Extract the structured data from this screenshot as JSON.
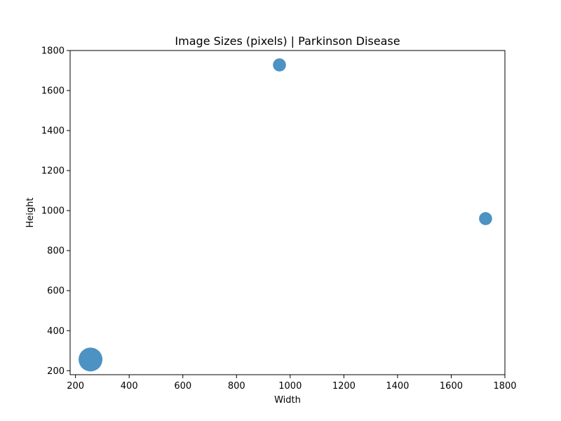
{
  "chart_data": {
    "type": "scatter",
    "title": "Image Sizes (pixels) | Parkinson Disease",
    "xlabel": "Width",
    "ylabel": "Height",
    "xlim": [
      180,
      1800
    ],
    "ylim": [
      180,
      1800
    ],
    "x_ticks": [
      200,
      400,
      600,
      800,
      1000,
      1200,
      1400,
      1600,
      1800
    ],
    "y_ticks": [
      200,
      400,
      600,
      800,
      1000,
      1200,
      1400,
      1600,
      1800
    ],
    "grid": false,
    "color": "#1f77b4",
    "points": [
      {
        "x": 256,
        "y": 256,
        "relative_size": 1.0
      },
      {
        "x": 960,
        "y": 1728,
        "relative_size": 0.3
      },
      {
        "x": 1728,
        "y": 960,
        "relative_size": 0.3
      }
    ]
  }
}
